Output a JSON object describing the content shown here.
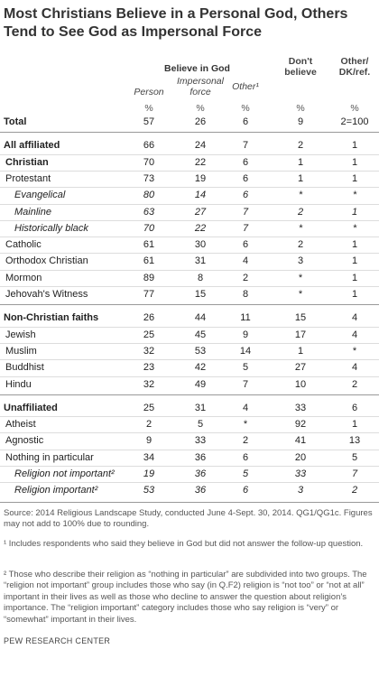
{
  "title": "Most Christians Believe in a Personal God, Others Tend to See God as Impersonal Force",
  "header": {
    "group": "Believe in God",
    "columns": [
      "Person",
      "Impersonal force",
      "Other¹",
      "Don't believe",
      "Other/ DK/ref."
    ],
    "units": [
      "%",
      "%",
      "%",
      "%",
      "%"
    ]
  },
  "table": {
    "sections": [
      [
        {
          "label": "Total",
          "style": "bold",
          "level": 0,
          "cells": [
            57,
            26,
            6,
            9,
            "2=100"
          ]
        }
      ],
      [
        {
          "label": "All affiliated",
          "style": "bold",
          "level": 0,
          "cells": [
            66,
            24,
            7,
            2,
            1
          ]
        },
        {
          "label": "Christian",
          "style": "bold",
          "level": 1,
          "cells": [
            70,
            22,
            6,
            1,
            1
          ]
        },
        {
          "label": "Protestant",
          "style": "plain",
          "level": 1,
          "cells": [
            73,
            19,
            6,
            1,
            1
          ]
        },
        {
          "label": "Evangelical",
          "style": "italic",
          "level": 2,
          "cells": [
            80,
            14,
            6,
            "*",
            "*"
          ]
        },
        {
          "label": "Mainline",
          "style": "italic",
          "level": 2,
          "cells": [
            63,
            27,
            7,
            2,
            1
          ]
        },
        {
          "label": "Historically black",
          "style": "italic",
          "level": 2,
          "cells": [
            70,
            22,
            7,
            "*",
            "*"
          ]
        },
        {
          "label": "Catholic",
          "style": "plain",
          "level": 1,
          "cells": [
            61,
            30,
            6,
            2,
            1
          ]
        },
        {
          "label": "Orthodox Christian",
          "style": "plain",
          "level": 1,
          "cells": [
            61,
            31,
            4,
            3,
            1
          ]
        },
        {
          "label": "Mormon",
          "style": "plain",
          "level": 1,
          "cells": [
            89,
            8,
            2,
            "*",
            1
          ]
        },
        {
          "label": "Jehovah's Witness",
          "style": "plain",
          "level": 1,
          "cells": [
            77,
            15,
            8,
            "*",
            1
          ]
        }
      ],
      [
        {
          "label": "Non-Christian faiths",
          "style": "bold",
          "level": 0,
          "cells": [
            26,
            44,
            11,
            15,
            4
          ]
        },
        {
          "label": "Jewish",
          "style": "plain",
          "level": 1,
          "cells": [
            25,
            45,
            9,
            17,
            4
          ]
        },
        {
          "label": "Muslim",
          "style": "plain",
          "level": 1,
          "cells": [
            32,
            53,
            14,
            1,
            "*"
          ]
        },
        {
          "label": "Buddhist",
          "style": "plain",
          "level": 1,
          "cells": [
            23,
            42,
            5,
            27,
            4
          ]
        },
        {
          "label": "Hindu",
          "style": "plain",
          "level": 1,
          "cells": [
            32,
            49,
            7,
            10,
            2
          ]
        }
      ],
      [
        {
          "label": "Unaffiliated",
          "style": "bold",
          "level": 0,
          "cells": [
            25,
            31,
            4,
            33,
            6
          ]
        },
        {
          "label": "Atheist",
          "style": "plain",
          "level": 1,
          "cells": [
            2,
            5,
            "*",
            92,
            1
          ]
        },
        {
          "label": "Agnostic",
          "style": "plain",
          "level": 1,
          "cells": [
            9,
            33,
            2,
            41,
            13
          ]
        },
        {
          "label": "Nothing in particular",
          "style": "plain",
          "level": 1,
          "cells": [
            34,
            36,
            6,
            20,
            5
          ]
        },
        {
          "label": "Religion not important²",
          "style": "italic",
          "level": 2,
          "cells": [
            19,
            36,
            5,
            33,
            7
          ]
        },
        {
          "label": "Religion important²",
          "style": "italic",
          "level": 2,
          "cells": [
            53,
            36,
            6,
            3,
            2
          ]
        }
      ]
    ]
  },
  "notes": {
    "source": "Source: 2014 Religious Landscape Study, conducted June 4-Sept. 30, 2014. QG1/QG1c. Figures may not add to 100% due to rounding.",
    "footnote1": "¹ Includes respondents who said they believe in God but did not answer the follow-up question.",
    "footnote2": "² Those who describe their religion as “nothing in particular” are subdivided into two groups. The “religion not important” group includes those who say (in Q.F2) religion is “not too” or “not at all” important in their lives as well as those who decline to answer the question about religion’s importance. The “religion important” category includes those who say religion is “very” or “somewhat” important in their lives.",
    "credit": "PEW RESEARCH CENTER"
  }
}
